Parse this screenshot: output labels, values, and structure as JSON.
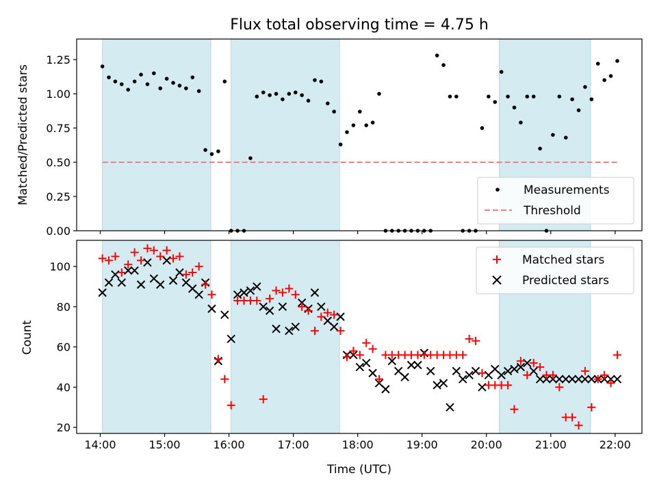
{
  "chart_data": [
    {
      "type": "scatter",
      "title": "Flux total observing time = 4.75 h",
      "xlabel": "",
      "ylabel": "Matched/Predicted stars",
      "xlim": [
        "13:38",
        "22:25"
      ],
      "ylim": [
        0,
        1.4
      ],
      "xticks": [
        "14:00",
        "15:00",
        "16:00",
        "17:00",
        "18:00",
        "19:00",
        "20:00",
        "21:00",
        "22:00"
      ],
      "yticks": [
        "0.00",
        "0.25",
        "0.50",
        "0.75",
        "1.00",
        "1.25"
      ],
      "shaded_intervals": [
        [
          "14:02",
          "15:43"
        ],
        [
          "16:02",
          "17:43"
        ],
        [
          "20:12",
          "21:37"
        ]
      ],
      "legend_position": "lower right",
      "threshold": {
        "name": "Threshold",
        "value": 0.5,
        "x_range": [
          "14:02",
          "22:04"
        ]
      },
      "series": [
        {
          "name": "Measurements",
          "x": [
            "14:02",
            "14:08",
            "14:14",
            "14:20",
            "14:26",
            "14:32",
            "14:38",
            "14:44",
            "14:50",
            "14:56",
            "15:02",
            "15:08",
            "15:14",
            "15:20",
            "15:26",
            "15:32",
            "15:38",
            "15:44",
            "15:50",
            "15:56",
            "16:02",
            "16:08",
            "16:14",
            "16:20",
            "16:26",
            "16:32",
            "16:38",
            "16:44",
            "16:50",
            "16:56",
            "17:02",
            "17:08",
            "17:14",
            "17:20",
            "17:26",
            "17:32",
            "17:38",
            "17:44",
            "17:50",
            "17:56",
            "18:02",
            "18:08",
            "18:14",
            "18:20",
            "18:26",
            "18:32",
            "18:38",
            "18:44",
            "18:50",
            "18:56",
            "19:02",
            "19:08",
            "19:14",
            "19:20",
            "19:26",
            "19:32",
            "19:38",
            "19:44",
            "19:50",
            "19:56",
            "20:02",
            "20:08",
            "20:14",
            "20:20",
            "20:26",
            "20:32",
            "20:38",
            "20:44",
            "20:50",
            "20:56",
            "21:02",
            "21:08",
            "21:14",
            "21:20",
            "21:26",
            "21:32",
            "21:38",
            "21:44",
            "21:50",
            "21:56",
            "22:02"
          ],
          "y": [
            1.2,
            1.12,
            1.09,
            1.07,
            1.03,
            1.09,
            1.14,
            1.07,
            1.15,
            1.04,
            1.11,
            1.08,
            1.06,
            1.04,
            1.12,
            1.02,
            0.59,
            0.56,
            0.58,
            1.09,
            0.0,
            0.0,
            0.0,
            0.53,
            0.98,
            1.01,
            0.99,
            1.0,
            0.96,
            1.0,
            1.01,
            0.99,
            0.95,
            1.1,
            1.09,
            0.93,
            0.87,
            0.63,
            0.72,
            0.77,
            0.87,
            0.77,
            0.79,
            1.0,
            0.0,
            0.0,
            0.0,
            0.0,
            0.0,
            0.0,
            0.0,
            0.0,
            1.28,
            1.21,
            0.98,
            0.98,
            0.0,
            0.0,
            0.0,
            0.75,
            0.98,
            0.94,
            1.16,
            0.98,
            0.9,
            0.79,
            0.98,
            0.98,
            0.6,
            0.0,
            0.7,
            0.98,
            0.68,
            0.96,
            0.88,
            1.05,
            0.96,
            1.22,
            1.1,
            1.13,
            1.24
          ]
        }
      ]
    },
    {
      "type": "scatter",
      "title": "",
      "xlabel": "Time (UTC)",
      "ylabel": "Count",
      "xlim": [
        "13:38",
        "22:25"
      ],
      "ylim": [
        17,
        113
      ],
      "xticks": [
        "14:00",
        "15:00",
        "16:00",
        "17:00",
        "18:00",
        "19:00",
        "20:00",
        "21:00",
        "22:00"
      ],
      "yticks": [
        "20",
        "40",
        "60",
        "80",
        "100"
      ],
      "shaded_intervals": [
        [
          "14:02",
          "15:43"
        ],
        [
          "16:02",
          "17:43"
        ],
        [
          "20:12",
          "21:37"
        ]
      ],
      "legend_position": "upper right",
      "series": [
        {
          "name": "Matched stars",
          "x": [
            "14:02",
            "14:08",
            "14:14",
            "14:20",
            "14:26",
            "14:32",
            "14:38",
            "14:44",
            "14:50",
            "14:56",
            "15:02",
            "15:08",
            "15:14",
            "15:20",
            "15:26",
            "15:32",
            "15:38",
            "15:44",
            "15:50",
            "15:56",
            "16:02",
            "16:08",
            "16:14",
            "16:20",
            "16:26",
            "16:32",
            "16:38",
            "16:44",
            "16:50",
            "16:56",
            "17:02",
            "17:08",
            "17:14",
            "17:20",
            "17:26",
            "17:32",
            "17:38",
            "17:44",
            "17:50",
            "17:56",
            "18:02",
            "18:08",
            "18:14",
            "18:20",
            "18:26",
            "18:32",
            "18:38",
            "18:44",
            "18:50",
            "18:56",
            "19:02",
            "19:08",
            "19:14",
            "19:20",
            "19:26",
            "19:32",
            "19:38",
            "19:44",
            "19:50",
            "19:56",
            "20:02",
            "20:08",
            "20:14",
            "20:20",
            "20:26",
            "20:32",
            "20:38",
            "20:44",
            "20:50",
            "20:56",
            "21:02",
            "21:08",
            "21:14",
            "21:20",
            "21:26",
            "21:32",
            "21:38",
            "21:44",
            "21:50",
            "21:56",
            "22:02"
          ],
          "y": [
            104,
            103,
            105,
            97,
            101,
            107,
            103,
            109,
            108,
            105,
            108,
            104,
            105,
            96,
            97,
            100,
            91,
            86,
            54,
            44,
            31,
            83,
            83,
            83,
            83,
            34,
            84,
            88,
            87,
            89,
            86,
            80,
            78,
            68,
            75,
            77,
            76,
            68,
            55,
            58,
            56,
            62,
            59,
            44,
            56,
            56,
            56,
            56,
            56,
            56,
            56,
            56,
            56,
            56,
            56,
            56,
            56,
            64,
            63,
            47,
            41,
            41,
            41,
            41,
            29,
            53,
            46,
            52,
            50,
            46,
            46,
            40,
            25,
            25,
            21,
            48,
            30,
            44,
            46,
            42,
            56
          ]
        },
        {
          "name": "Predicted stars",
          "x": [
            "14:02",
            "14:08",
            "14:14",
            "14:20",
            "14:26",
            "14:32",
            "14:38",
            "14:44",
            "14:50",
            "14:56",
            "15:02",
            "15:08",
            "15:14",
            "15:20",
            "15:26",
            "15:32",
            "15:38",
            "15:44",
            "15:50",
            "15:56",
            "16:02",
            "16:08",
            "16:14",
            "16:20",
            "16:26",
            "16:32",
            "16:38",
            "16:44",
            "16:50",
            "16:56",
            "17:02",
            "17:08",
            "17:14",
            "17:20",
            "17:26",
            "17:32",
            "17:38",
            "17:44",
            "17:50",
            "17:56",
            "18:02",
            "18:08",
            "18:14",
            "18:20",
            "18:26",
            "18:32",
            "18:38",
            "18:44",
            "18:50",
            "18:56",
            "19:02",
            "19:08",
            "19:14",
            "19:20",
            "19:26",
            "19:32",
            "19:38",
            "19:44",
            "19:50",
            "19:56",
            "20:02",
            "20:08",
            "20:14",
            "20:20",
            "20:26",
            "20:32",
            "20:38",
            "20:44",
            "20:50",
            "20:56",
            "21:02",
            "21:08",
            "21:14",
            "21:20",
            "21:26",
            "21:32",
            "21:38",
            "21:44",
            "21:50",
            "21:56",
            "22:02"
          ],
          "y": [
            87,
            92,
            96,
            92,
            98,
            98,
            91,
            102,
            94,
            91,
            103,
            93,
            97,
            92,
            89,
            86,
            92,
            79,
            53,
            76,
            64,
            86,
            87,
            88,
            90,
            80,
            78,
            69,
            80,
            68,
            70,
            82,
            79,
            87,
            80,
            73,
            70,
            75,
            56,
            56,
            50,
            52,
            47,
            42,
            39,
            53,
            48,
            45,
            51,
            51,
            57,
            48,
            41,
            42,
            30,
            48,
            44,
            46,
            48,
            40,
            46,
            49,
            46,
            48,
            49,
            50,
            52,
            48,
            44,
            44,
            44,
            44,
            44,
            44,
            44,
            44,
            44,
            44,
            44,
            44,
            44
          ]
        }
      ]
    }
  ],
  "legends": {
    "top": [
      "Measurements",
      "Threshold"
    ],
    "bottom": [
      "Matched stars",
      "Predicted stars"
    ]
  },
  "colors": {
    "shade": "#add8e6",
    "measurement": "#000000",
    "threshold": "#f08080",
    "matched": "#ff0000",
    "predicted": "#000000"
  }
}
